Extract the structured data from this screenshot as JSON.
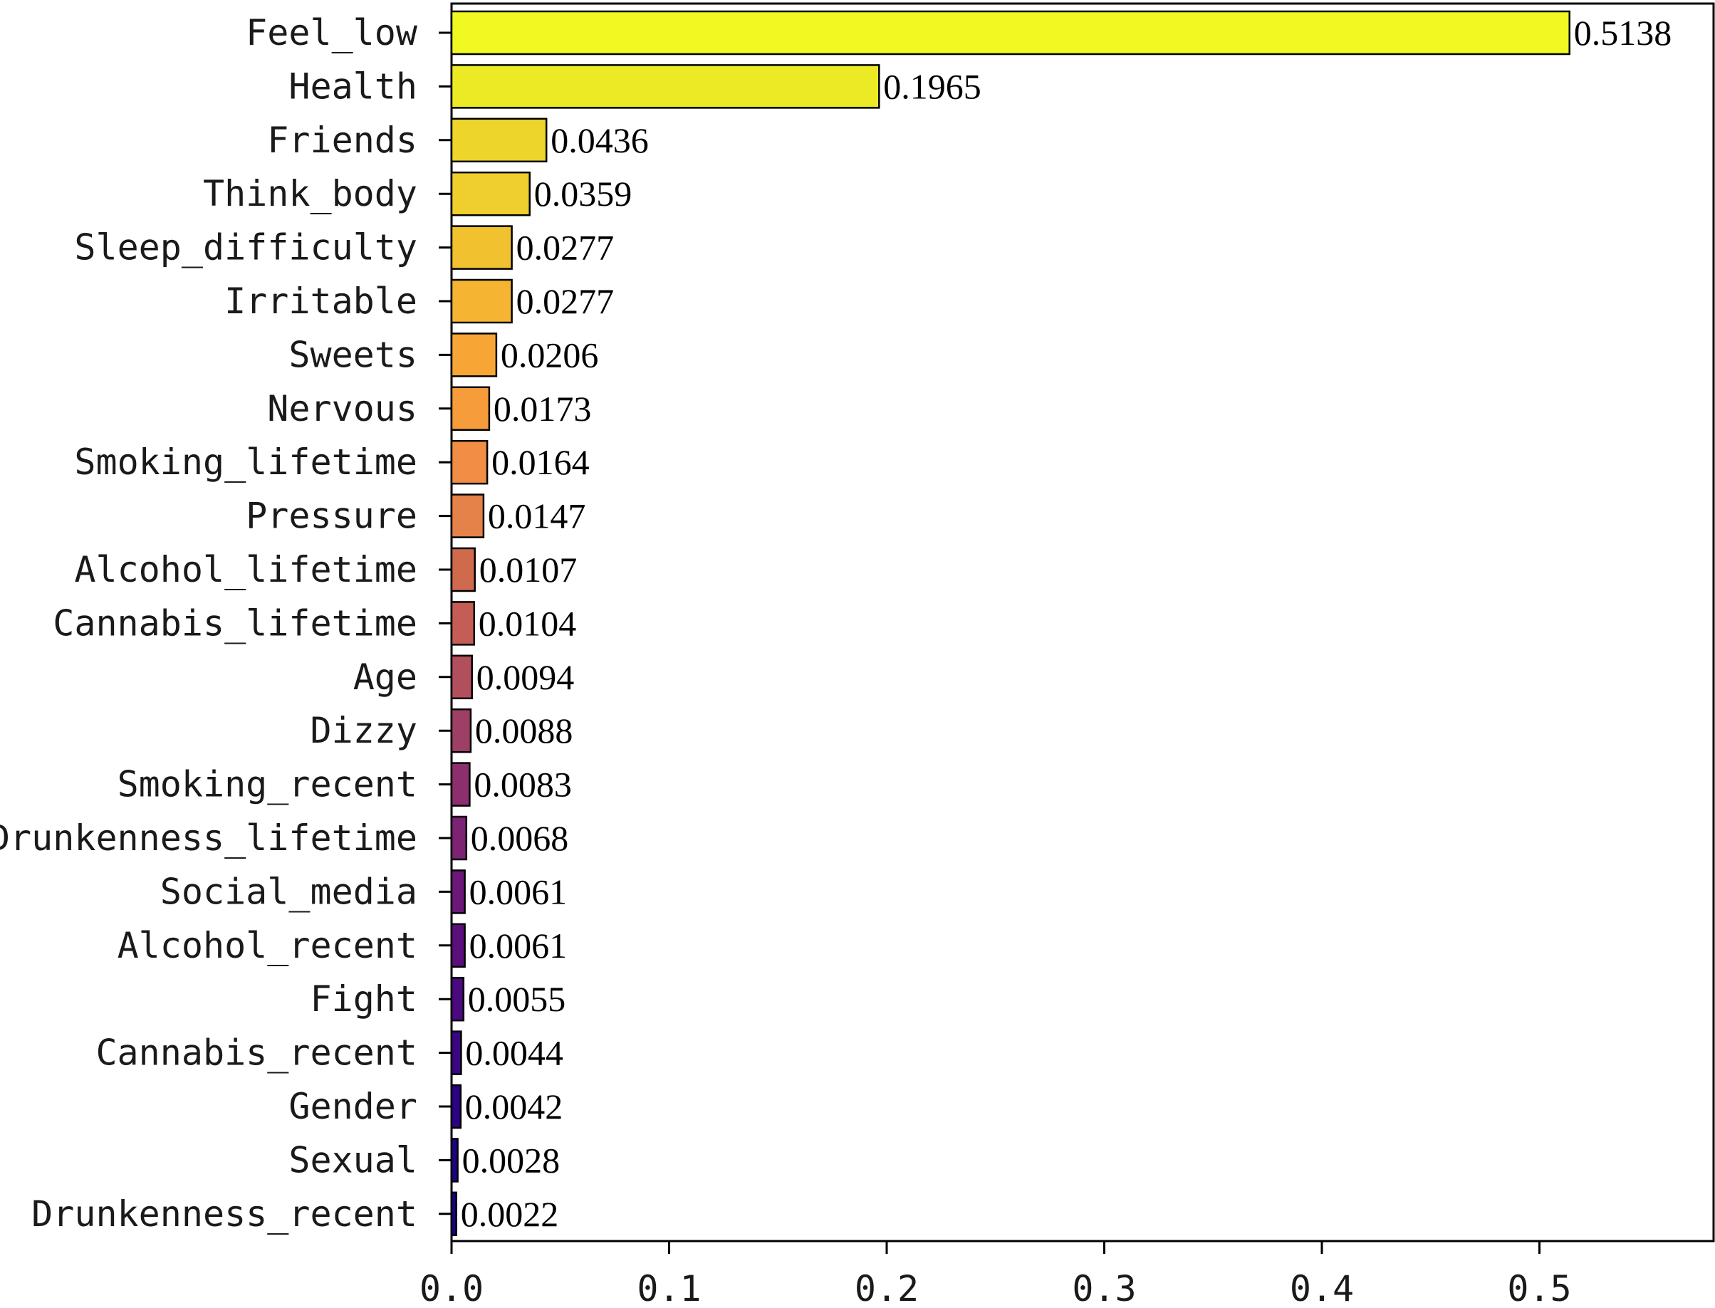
{
  "chart_data": {
    "type": "bar",
    "orientation": "horizontal",
    "categories": [
      "Feel_low",
      "Health",
      "Friends",
      "Think_body",
      "Sleep_difficulty",
      "Irritable",
      "Sweets",
      "Nervous",
      "Smoking_lifetime",
      "Pressure",
      "Alcohol_lifetime",
      "Cannabis_lifetime",
      "Age",
      "Dizzy",
      "Smoking_recent",
      "Drunkenness_lifetime",
      "Social_media",
      "Alcohol_recent",
      "Fight",
      "Cannabis_recent",
      "Gender",
      "Sexual",
      "Drunkenness_recent"
    ],
    "values": [
      0.5138,
      0.1965,
      0.0436,
      0.0359,
      0.0277,
      0.0277,
      0.0206,
      0.0173,
      0.0164,
      0.0147,
      0.0107,
      0.0104,
      0.0094,
      0.0088,
      0.0083,
      0.0068,
      0.0061,
      0.0061,
      0.0055,
      0.0044,
      0.0042,
      0.0028,
      0.0022
    ],
    "value_labels": [
      "0.5138",
      "0.1965",
      "0.0436",
      "0.0359",
      "0.0277",
      "0.0277",
      "0.0206",
      "0.0173",
      "0.0164",
      "0.0147",
      "0.0107",
      "0.0104",
      "0.0094",
      "0.0088",
      "0.0083",
      "0.0068",
      "0.0061",
      "0.0061",
      "0.0055",
      "0.0044",
      "0.0042",
      "0.0028",
      "0.0022"
    ],
    "colors": [
      "#f0f921",
      "#ecea24",
      "#eed52b",
      "#efcf2e",
      "#f2c12f",
      "#f5b432",
      "#f7a636",
      "#f79c3b",
      "#f18d45",
      "#e58249",
      "#cf6a4d",
      "#c35d55",
      "#b14f5d",
      "#9e3f66",
      "#8b2f6e",
      "#7c2374",
      "#6b1878",
      "#5a0f7c",
      "#4a097f",
      "#3a0682",
      "#2b0384",
      "#1f0387",
      "#170585"
    ],
    "xlim": [
      0,
      0.58
    ],
    "xticks": [
      "0.0",
      "0.1",
      "0.2",
      "0.3",
      "0.4",
      "0.5"
    ],
    "title": "",
    "xlabel": "",
    "ylabel": "",
    "grid": false,
    "legend": "none"
  }
}
